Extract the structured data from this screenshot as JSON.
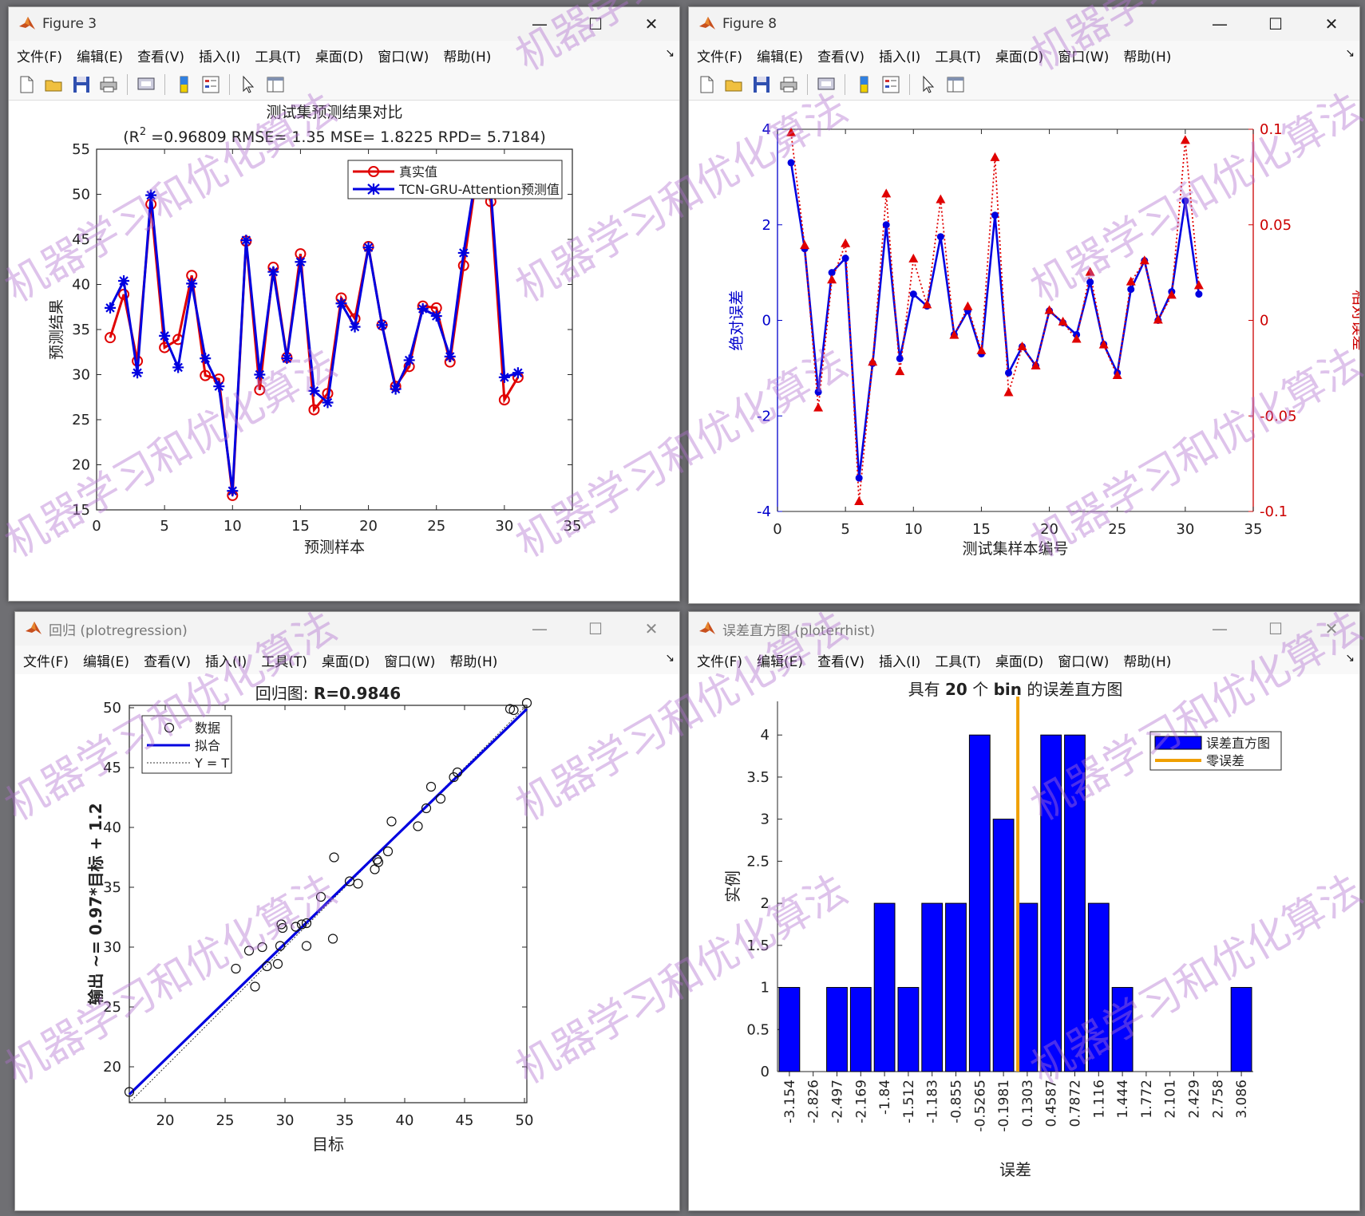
{
  "menu": [
    "文件(F)",
    "编辑(E)",
    "查看(V)",
    "插入(I)",
    "工具(T)",
    "桌面(D)",
    "窗口(W)",
    "帮助(H)"
  ],
  "menu_dock": "↘",
  "window_buttons": {
    "minimize": "—",
    "maximize": "☐",
    "close": "✕"
  },
  "toolbar_icons": [
    "new-figure-icon",
    "open-file-icon",
    "save-icon",
    "print-icon",
    "print-preview-icon",
    "colorbar-icon",
    "legend-icon",
    "pointer-icon",
    "property-editor-icon"
  ],
  "watermark": "机器学习和优化算法",
  "windows": [
    {
      "id": "fig3",
      "title": "Figure 3"
    },
    {
      "id": "fig8",
      "title": "Figure 8"
    },
    {
      "id": "reg",
      "title": "回归 (plotregression)"
    },
    {
      "id": "hist",
      "title": "误差直方图 (ploterrhist)"
    }
  ],
  "chart_data": [
    {
      "type": "line",
      "title": "测试集预测结果对比",
      "subtitle_prefix": "(R",
      "subtitle_sup": "2",
      "subtitle_rest": " =0.96809 RMSE= 1.35 MSE= 1.8225 RPD= 5.7184)",
      "xlabel": "预测样本",
      "ylabel": "预测结果",
      "xlim": [
        0,
        35
      ],
      "ylim": [
        15,
        55
      ],
      "xticks": [
        0,
        5,
        10,
        15,
        20,
        25,
        30,
        35
      ],
      "yticks": [
        15,
        20,
        25,
        30,
        35,
        40,
        45,
        50,
        55
      ],
      "legend_position": "top-right",
      "series": [
        {
          "name": "真实值",
          "color": "#e00000",
          "marker": "circle",
          "x": [
            1,
            2,
            3,
            4,
            5,
            6,
            7,
            8,
            9,
            10,
            11,
            12,
            13,
            14,
            15,
            16,
            17,
            18,
            19,
            20,
            21,
            22,
            23,
            24,
            25,
            26,
            27,
            28,
            29,
            30,
            31
          ],
          "values": [
            34.1,
            38.9,
            31.5,
            48.9,
            33.0,
            33.9,
            41.0,
            29.9,
            29.5,
            16.6,
            44.8,
            28.3,
            41.9,
            31.9,
            43.4,
            26.1,
            27.9,
            38.5,
            36.2,
            44.2,
            35.5,
            28.7,
            30.9,
            37.6,
            37.4,
            31.4,
            42.1,
            52.5,
            49.2,
            27.2,
            29.7
          ]
        },
        {
          "name": "TCN-GRU-Attention预测值",
          "color": "#0000e0",
          "marker": "star",
          "x": [
            1,
            2,
            3,
            4,
            5,
            6,
            7,
            8,
            9,
            10,
            11,
            12,
            13,
            14,
            15,
            16,
            17,
            18,
            19,
            20,
            21,
            22,
            23,
            24,
            25,
            26,
            27,
            28,
            29,
            30,
            31
          ],
          "values": [
            37.4,
            40.4,
            30.2,
            49.9,
            34.3,
            30.8,
            40.1,
            31.8,
            28.7,
            17.1,
            44.9,
            30.0,
            41.4,
            31.8,
            42.5,
            28.2,
            26.9,
            37.9,
            35.3,
            44.1,
            35.5,
            28.4,
            31.6,
            37.3,
            36.5,
            32.0,
            43.5,
            53.0,
            50.5,
            29.7,
            30.2
          ]
        }
      ]
    },
    {
      "type": "line",
      "title": "",
      "xlabel": "测试集样本编号",
      "ylabel_left": "绝对误差",
      "ylabel_right": "相对误差",
      "xlim": [
        0,
        35
      ],
      "ylim_left": [
        -4,
        4
      ],
      "ylim_right": [
        -0.1,
        0.1
      ],
      "xticks": [
        0,
        5,
        10,
        15,
        20,
        25,
        30,
        35
      ],
      "yticks_left": [
        -4,
        -2,
        0,
        2,
        4
      ],
      "yticks_right": [
        -0.1,
        -0.05,
        0,
        0.05,
        0.1
      ],
      "ytick_labels_right": [
        "-0.1",
        "-0.05",
        "0",
        "0.05",
        "0.1"
      ],
      "series": [
        {
          "name": "绝对误差",
          "axis": "left",
          "color": "#0000e0",
          "marker": "dot",
          "x": [
            1,
            2,
            3,
            4,
            5,
            6,
            7,
            8,
            9,
            10,
            11,
            12,
            13,
            14,
            15,
            16,
            17,
            18,
            19,
            20,
            21,
            22,
            23,
            24,
            25,
            26,
            27,
            28,
            29,
            30,
            31
          ],
          "values": [
            3.3,
            1.5,
            -1.5,
            1.0,
            1.3,
            -3.3,
            -0.9,
            2.0,
            -0.8,
            0.55,
            0.3,
            1.75,
            -0.3,
            0.2,
            -0.7,
            2.2,
            -1.1,
            -0.55,
            -0.95,
            0.2,
            -0.05,
            -0.3,
            0.8,
            -0.5,
            -1.1,
            0.65,
            1.25,
            0.0,
            0.6,
            2.5,
            0.55
          ]
        },
        {
          "name": "相对误差",
          "axis": "right",
          "color": "#e00000",
          "marker": "triangle",
          "dash": "dotted",
          "x": [
            1,
            2,
            3,
            4,
            5,
            6,
            7,
            8,
            9,
            10,
            11,
            12,
            13,
            14,
            15,
            16,
            17,
            18,
            19,
            20,
            21,
            22,
            23,
            24,
            25,
            26,
            27,
            28,
            29,
            30,
            31
          ],
          "values": [
            0.098,
            0.039,
            -0.046,
            0.021,
            0.04,
            -0.095,
            -0.022,
            0.066,
            -0.027,
            0.032,
            0.008,
            0.063,
            -0.008,
            0.007,
            -0.016,
            0.085,
            -0.038,
            -0.014,
            -0.024,
            0.005,
            -0.001,
            -0.01,
            0.025,
            -0.013,
            -0.029,
            0.02,
            0.031,
            0.0,
            0.013,
            0.094,
            0.018
          ]
        }
      ]
    },
    {
      "type": "scatter",
      "title_prefix": "回归图: ",
      "title_value": "R=0.9846",
      "xlabel": "目标",
      "ylabel": "输出 ~= 0.97*目标 + 1.2",
      "xlim": [
        17,
        50.2
      ],
      "ylim": [
        17,
        50.2
      ],
      "xticks": [
        20,
        25,
        30,
        35,
        40,
        45,
        50
      ],
      "yticks": [
        20,
        25,
        30,
        35,
        40,
        45,
        50
      ],
      "legend_position": "top-left",
      "legend": [
        "数据",
        "拟合",
        "Y = T"
      ],
      "fit": {
        "slope": 0.97,
        "intercept": 1.2,
        "color": "#0000e0"
      },
      "x": [
        17.0,
        25.9,
        27.0,
        27.5,
        28.1,
        28.5,
        29.4,
        29.6,
        29.7,
        29.8,
        30.9,
        31.4,
        31.8,
        31.8,
        33.0,
        34.0,
        34.1,
        35.4,
        36.1,
        37.5,
        37.7,
        37.8,
        38.6,
        38.9,
        41.1,
        41.8,
        42.2,
        43.0,
        44.1,
        44.4,
        48.8,
        49.1,
        50.2
      ],
      "y": [
        17.9,
        28.2,
        29.7,
        26.7,
        30.0,
        28.4,
        28.6,
        30.1,
        31.9,
        31.6,
        31.7,
        31.9,
        30.1,
        32.0,
        34.2,
        30.7,
        37.5,
        35.5,
        35.3,
        36.5,
        37.3,
        37.1,
        38.0,
        40.5,
        40.1,
        41.6,
        43.4,
        42.4,
        44.2,
        44.6,
        49.9,
        49.8,
        50.4
      ]
    },
    {
      "type": "bar",
      "title_pre": "具有 ",
      "title_num": "20",
      "title_mid": " 个 ",
      "title_bin": "bin",
      "title_post": " 的误差直方图",
      "xlabel": "误差",
      "ylabel": "实例",
      "ylim": [
        0,
        4.4
      ],
      "yticks": [
        0,
        0.5,
        1,
        1.5,
        2,
        2.5,
        3,
        3.5,
        4
      ],
      "ytick_labels": [
        "0",
        "0.5",
        "1",
        "1.5",
        "2",
        "2.5",
        "3",
        "3.5",
        "4"
      ],
      "legend_position": "top-right",
      "legend": [
        "误差直方图",
        "零误差"
      ],
      "bar_color": "#0000ff",
      "zero_line_color": "#f0a000",
      "zero_error": 0,
      "categories": [
        "-3.154",
        "-2.826",
        "-2.497",
        "-2.169",
        "-1.84",
        "-1.512",
        "-1.183",
        "-0.855",
        "-0.5265",
        "-0.1981",
        "0.1303",
        "0.4587",
        "0.7872",
        "1.116",
        "1.444",
        "1.772",
        "2.101",
        "2.429",
        "2.758",
        "3.086"
      ],
      "values": [
        1,
        0,
        1,
        1,
        2,
        1,
        2,
        2,
        4,
        3,
        2,
        4,
        4,
        2,
        1,
        0,
        0,
        0,
        0,
        1
      ]
    }
  ]
}
